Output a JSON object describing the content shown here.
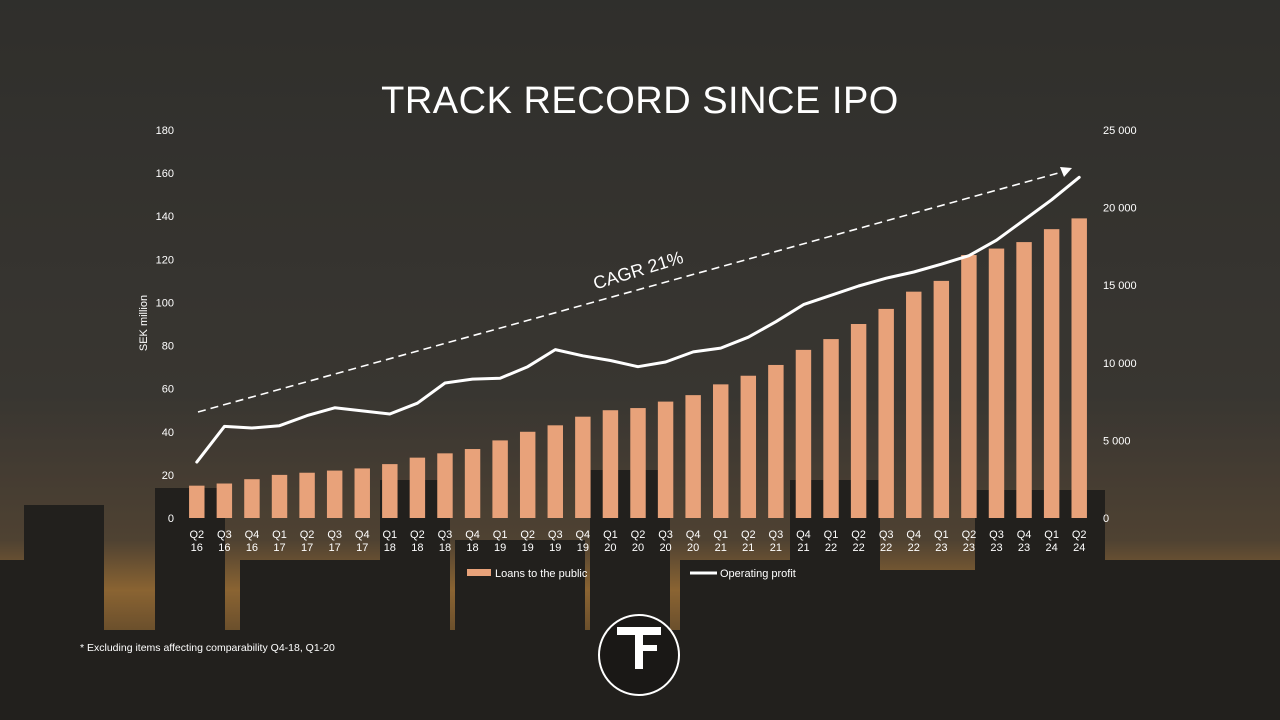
{
  "slide": {
    "title": "TRACK RECORD SINCE IPO",
    "footnote": "* Excluding items affecting comparability Q4-18, Q1-20",
    "logo_text": "TF"
  },
  "colors": {
    "bar": "#e8a27a",
    "line": "#ffffff",
    "text": "#ffffff",
    "trend": "#ffffff"
  },
  "chart_data": {
    "type": "bar",
    "title": "",
    "ylabel": "SEK million",
    "ylim": [
      0,
      180
    ],
    "y_ticks": [
      "0",
      "20",
      "40",
      "60",
      "80",
      "100",
      "120",
      "140",
      "160",
      "180"
    ],
    "y2lim": [
      0,
      25000
    ],
    "y2_ticks": [
      "0",
      "5 000",
      "10 000",
      "15 000",
      "20 000",
      "25 000"
    ],
    "categories": [
      [
        "Q2",
        "16"
      ],
      [
        "Q3",
        "16"
      ],
      [
        "Q4",
        "16"
      ],
      [
        "Q1",
        "17"
      ],
      [
        "Q2",
        "17"
      ],
      [
        "Q3",
        "17"
      ],
      [
        "Q4",
        "17"
      ],
      [
        "Q1",
        "18"
      ],
      [
        "Q2",
        "18"
      ],
      [
        "Q3",
        "18"
      ],
      [
        "Q4",
        "18"
      ],
      [
        "Q1",
        "19"
      ],
      [
        "Q2",
        "19"
      ],
      [
        "Q3",
        "19"
      ],
      [
        "Q4",
        "19"
      ],
      [
        "Q1",
        "20"
      ],
      [
        "Q2",
        "20"
      ],
      [
        "Q3",
        "20"
      ],
      [
        "Q4",
        "20"
      ],
      [
        "Q1",
        "21"
      ],
      [
        "Q2",
        "21"
      ],
      [
        "Q3",
        "21"
      ],
      [
        "Q4",
        "21"
      ],
      [
        "Q1",
        "22"
      ],
      [
        "Q2",
        "22"
      ],
      [
        "Q3",
        "22"
      ],
      [
        "Q4",
        "22"
      ],
      [
        "Q1",
        "23"
      ],
      [
        "Q2",
        "23"
      ],
      [
        "Q3",
        "23"
      ],
      [
        "Q4",
        "23"
      ],
      [
        "Q1",
        "24"
      ],
      [
        "Q2",
        "24"
      ]
    ],
    "series": [
      {
        "name": "Loans to the public",
        "type": "bar",
        "axis": "left",
        "values": [
          15,
          16,
          18,
          20,
          21,
          22,
          23,
          25,
          28,
          30,
          32,
          36,
          40,
          43,
          47,
          50,
          51,
          54,
          57,
          62,
          66,
          71,
          78,
          83,
          90,
          97,
          105,
          110,
          122,
          125,
          128,
          134,
          139
        ]
      },
      {
        "name": "Operating profit",
        "type": "line",
        "axis": "right",
        "values": [
          3600,
          5900,
          5800,
          5950,
          6600,
          7100,
          6900,
          6700,
          7400,
          8700,
          8950,
          9000,
          9750,
          10850,
          10450,
          10150,
          9750,
          10050,
          10700,
          10950,
          11650,
          12650,
          13750,
          14350,
          14950,
          15450,
          15850,
          16350,
          16900,
          17900,
          19200,
          20500,
          21950
        ]
      }
    ],
    "annotations": [
      "CAGR 21%"
    ],
    "legend_position": "bottom",
    "grid": false
  }
}
